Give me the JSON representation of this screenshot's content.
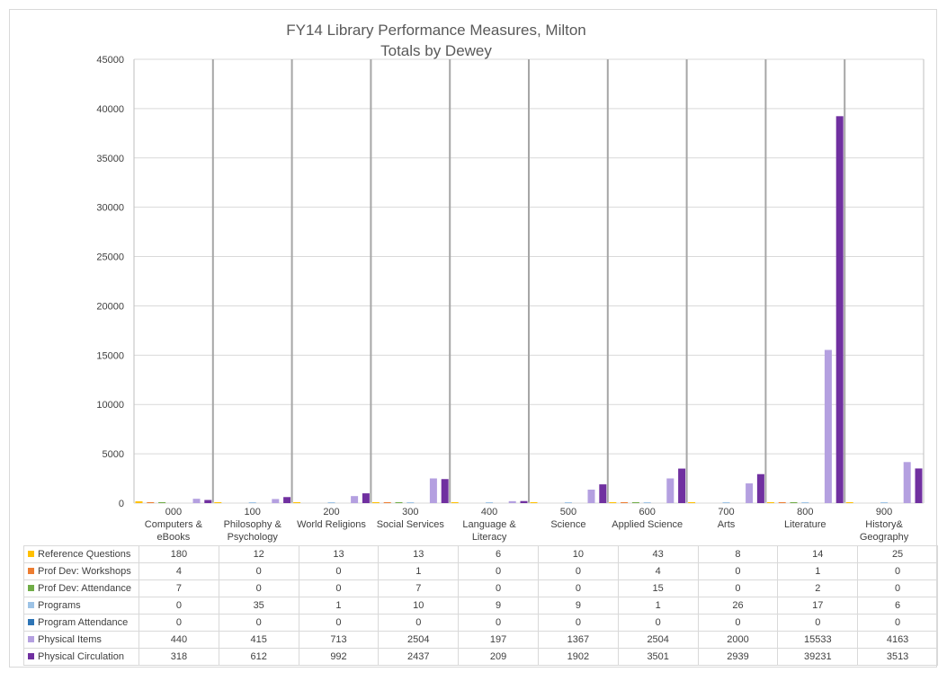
{
  "chart_data": {
    "type": "bar",
    "title": [
      "FY14 Library Performance Measures, Milton",
      "Totals by Dewey"
    ],
    "ylim": [
      0,
      45000
    ],
    "yticks": [
      0,
      5000,
      10000,
      15000,
      20000,
      25000,
      30000,
      35000,
      40000,
      45000
    ],
    "grid": true,
    "legend": "data-table",
    "categories": [
      "000\nComputers &\neBooks",
      "100\nPhilosophy &\nPsychology",
      "200\nWorld Religions",
      "300\nSocial Services",
      "400\nLanguage &\nLiteracy",
      "500\nScience",
      "600\nApplied Science",
      "700\nArts",
      "800\nLiterature",
      "900\nHistory&\nGeography"
    ],
    "series": [
      {
        "name": "Reference Questions",
        "color": "#ffc000",
        "values": [
          180,
          12,
          13,
          13,
          6,
          10,
          43,
          8,
          14,
          25
        ]
      },
      {
        "name": "Prof Dev: Workshops",
        "color": "#ed7d31",
        "values": [
          4,
          0,
          0,
          1,
          0,
          0,
          4,
          0,
          1,
          0
        ]
      },
      {
        "name": "Prof Dev: Attendance",
        "color": "#70ad47",
        "values": [
          7,
          0,
          0,
          7,
          0,
          0,
          15,
          0,
          2,
          0
        ]
      },
      {
        "name": "Programs",
        "color": "#9dc3e6",
        "values": [
          0,
          35,
          1,
          10,
          9,
          9,
          1,
          26,
          17,
          6
        ]
      },
      {
        "name": "Program Attendance",
        "color": "#2e75b6",
        "values": [
          0,
          0,
          0,
          0,
          0,
          0,
          0,
          0,
          0,
          0
        ]
      },
      {
        "name": "Physical Items",
        "color": "#b4a0e0",
        "values": [
          440,
          415,
          713,
          2504,
          197,
          1367,
          2504,
          2000,
          15533,
          4163
        ]
      },
      {
        "name": "Physical Circulation",
        "color": "#7030a0",
        "values": [
          318,
          612,
          992,
          2437,
          209,
          1902,
          3501,
          2939,
          39231,
          3513
        ]
      }
    ]
  }
}
